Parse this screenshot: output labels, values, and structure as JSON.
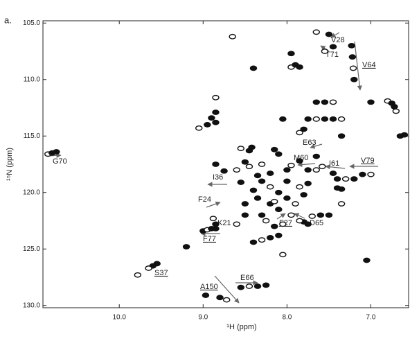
{
  "panel_label": "a.",
  "chart_data": {
    "type": "scatter",
    "xlabel": "¹H (ppm)",
    "ylabel": "¹⁵N (ppm)",
    "xlim": [
      10.91,
      6.55
    ],
    "ylim": [
      104.8,
      130.2
    ],
    "xticks": [
      {
        "value": 10,
        "label": "10.0"
      },
      {
        "value": 9,
        "label": "9.0"
      },
      {
        "value": 8,
        "label": "8.0"
      },
      {
        "value": 7,
        "label": "7.0"
      }
    ],
    "yticks": [
      {
        "value": 105,
        "label": "105.0"
      },
      {
        "value": 110,
        "label": "110.0"
      },
      {
        "value": 115,
        "label": "115.0"
      },
      {
        "value": 120,
        "label": "120.0"
      },
      {
        "value": 125,
        "label": "125.0"
      },
      {
        "value": 130,
        "label": "130.0"
      }
    ],
    "color": "#111",
    "x": [
      10.85,
      10.8,
      10.75,
      9.78,
      9.55,
      9.6,
      9.65,
      9.2,
      8.97,
      8.72,
      8.8,
      8.55,
      8.45,
      8.35,
      8.25,
      8.65,
      8.4,
      7.95,
      7.95,
      7.9,
      7.85,
      7.65,
      7.5,
      7.45,
      7.55,
      7.23,
      7.22,
      7.21,
      7.2,
      7.0,
      6.8,
      6.75,
      6.72,
      6.7,
      6.65,
      6.6,
      8.85,
      8.85,
      8.9,
      9.05,
      8.95,
      8.85,
      8.55,
      8.42,
      8.45,
      8.3,
      8.15,
      8.1,
      7.85,
      7.8,
      7.75,
      7.65,
      7.55,
      7.45,
      7.35,
      7.65,
      7.55,
      7.45,
      7.35,
      8.05,
      7.58,
      7.65,
      7.75,
      7.65,
      7.45,
      7.4,
      7.3,
      7.2,
      7.1,
      7.0,
      7.35,
      7.4,
      7.35,
      7.5,
      7.6,
      7.7,
      7.75,
      7.8,
      7.85,
      8.85,
      8.75,
      8.6,
      8.5,
      8.55,
      8.88,
      8.85,
      9.0,
      8.95,
      8.9,
      8.85,
      8.6,
      8.5,
      8.5,
      8.25,
      8.3,
      8.4,
      8.3,
      8.2,
      8.1,
      8.05,
      7.05,
      8.3,
      8.2,
      8.1,
      8.0,
      7.9,
      8.2,
      8.0,
      7.85,
      8.35,
      8.1,
      7.95,
      8.2,
      8.0,
      8.15,
      7.8,
      8.4,
      8.05,
      8.15,
      7.75,
      8.45,
      8.35,
      7.85,
      7.95
    ],
    "values": [
      116.6,
      116.5,
      116.4,
      127.3,
      126.3,
      126.5,
      126.7,
      124.8,
      129.1,
      129.5,
      129.3,
      128.4,
      128.3,
      128.3,
      128.2,
      106.2,
      109.0,
      107.7,
      108.9,
      108.7,
      108.9,
      105.8,
      106.0,
      107.1,
      107.5,
      107.0,
      108.0,
      109.0,
      110.0,
      112.0,
      111.9,
      112.1,
      112.4,
      112.8,
      115.0,
      114.9,
      111.6,
      112.9,
      113.4,
      114.3,
      114.0,
      113.8,
      116.1,
      116.0,
      116.3,
      117.5,
      116.2,
      116.6,
      114.7,
      114.4,
      113.5,
      113.5,
      113.5,
      113.5,
      113.5,
      112.0,
      112.0,
      112.0,
      115.0,
      113.5,
      117.7,
      116.8,
      118.0,
      118.0,
      118.3,
      118.8,
      118.8,
      118.8,
      118.4,
      118.4,
      119.7,
      119.6,
      121.0,
      122.0,
      122.0,
      122.1,
      122.8,
      122.6,
      122.5,
      117.5,
      118.1,
      118.0,
      117.3,
      119.1,
      122.3,
      122.8,
      123.4,
      123.3,
      123.2,
      123.2,
      122.8,
      121.0,
      122.0,
      122.5,
      122.0,
      124.4,
      124.2,
      124.0,
      123.8,
      125.5,
      126.0,
      119.0,
      119.5,
      120.0,
      120.5,
      121.0,
      121.0,
      119.0,
      119.5,
      120.5,
      121.5,
      122.0,
      118.3,
      118.0,
      120.8,
      120.2,
      119.8,
      122.8,
      123.0,
      119.2,
      117.7,
      118.5,
      117.2,
      117.6
    ],
    "annotations": [
      {
        "text": "V28",
        "underline": false
      },
      {
        "text": "T71",
        "underline": false
      },
      {
        "text": "V64",
        "underline": true
      },
      {
        "text": "E63",
        "underline": false
      },
      {
        "text": "M60",
        "underline": false
      },
      {
        "text": "I61",
        "underline": false
      },
      {
        "text": "V79",
        "underline": true
      },
      {
        "text": "I36",
        "underline": false
      },
      {
        "text": "F24",
        "underline": false
      },
      {
        "text": "K21",
        "underline": false
      },
      {
        "text": "F77",
        "underline": true
      },
      {
        "text": "F27",
        "underline": true
      },
      {
        "text": "D65",
        "underline": false
      },
      {
        "text": "S37",
        "underline": true
      },
      {
        "text": "E66",
        "underline": false
      },
      {
        "text": "A150",
        "underline": true
      },
      {
        "text": "G70",
        "underline": false
      }
    ]
  }
}
